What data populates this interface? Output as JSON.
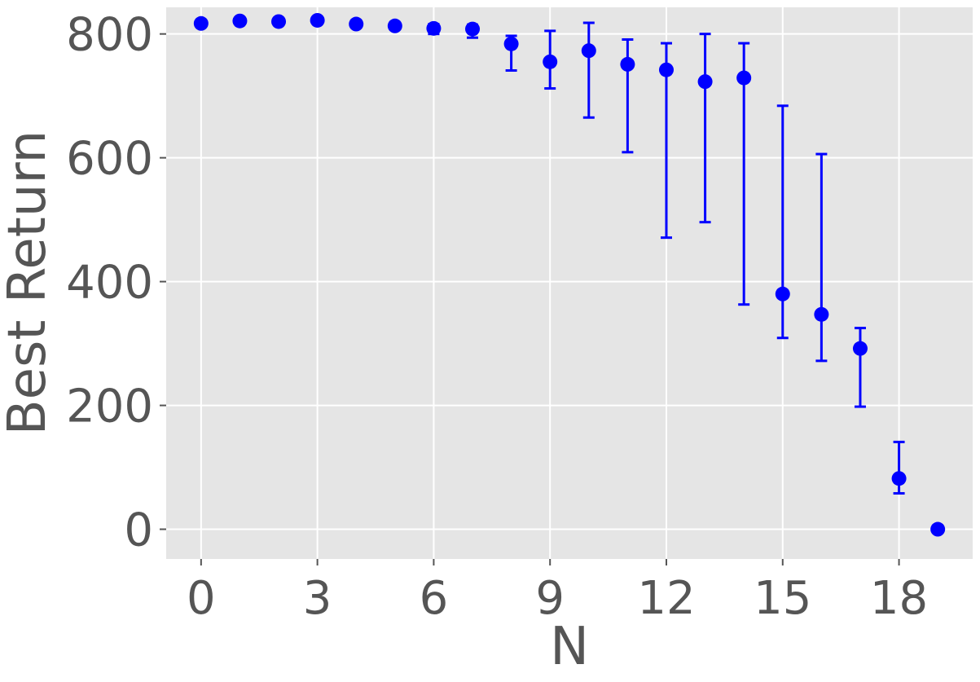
{
  "chart_data": {
    "type": "scatter",
    "title": "",
    "xlabel": "N",
    "ylabel": "Best Return",
    "xlim": [
      -0.9,
      19.9
    ],
    "ylim": [
      -48,
      843
    ],
    "xticks": [
      0,
      3,
      6,
      9,
      12,
      15,
      18
    ],
    "yticks": [
      0,
      200,
      400,
      600,
      800
    ],
    "xtick_labels": [
      "0",
      "3",
      "6",
      "9",
      "12",
      "15",
      "18"
    ],
    "ytick_labels": [
      "0",
      "200",
      "400",
      "600",
      "800"
    ],
    "grid": true,
    "legend": "none",
    "colors": {
      "marker": "#0000ff",
      "background": "#e5e5e5",
      "grid": "#ffffff",
      "text": "#555555"
    },
    "series": [
      {
        "points": [
          {
            "x": 0,
            "y": 817,
            "err_low": 817,
            "err_high": 817
          },
          {
            "x": 1,
            "y": 821,
            "err_low": 821,
            "err_high": 821
          },
          {
            "x": 2,
            "y": 820,
            "err_low": 820,
            "err_high": 820
          },
          {
            "x": 3,
            "y": 822,
            "err_low": 822,
            "err_high": 822
          },
          {
            "x": 4,
            "y": 816,
            "err_low": 816,
            "err_high": 816
          },
          {
            "x": 5,
            "y": 813,
            "err_low": 813,
            "err_high": 813
          },
          {
            "x": 6,
            "y": 809,
            "err_low": 800,
            "err_high": 816
          },
          {
            "x": 7,
            "y": 808,
            "err_low": 794,
            "err_high": 815
          },
          {
            "x": 8,
            "y": 784,
            "err_low": 741,
            "err_high": 797
          },
          {
            "x": 9,
            "y": 755,
            "err_low": 712,
            "err_high": 805
          },
          {
            "x": 10,
            "y": 773,
            "err_low": 665,
            "err_high": 818
          },
          {
            "x": 11,
            "y": 751,
            "err_low": 609,
            "err_high": 791
          },
          {
            "x": 12,
            "y": 742,
            "err_low": 471,
            "err_high": 785
          },
          {
            "x": 13,
            "y": 723,
            "err_low": 496,
            "err_high": 800
          },
          {
            "x": 14,
            "y": 729,
            "err_low": 363,
            "err_high": 785
          },
          {
            "x": 15,
            "y": 380,
            "err_low": 309,
            "err_high": 684
          },
          {
            "x": 16,
            "y": 347,
            "err_low": 272,
            "err_high": 606
          },
          {
            "x": 17,
            "y": 292,
            "err_low": 198,
            "err_high": 325
          },
          {
            "x": 18,
            "y": 82,
            "err_low": 58,
            "err_high": 141
          },
          {
            "x": 19,
            "y": 0,
            "err_low": 0,
            "err_high": 0
          }
        ]
      }
    ]
  }
}
